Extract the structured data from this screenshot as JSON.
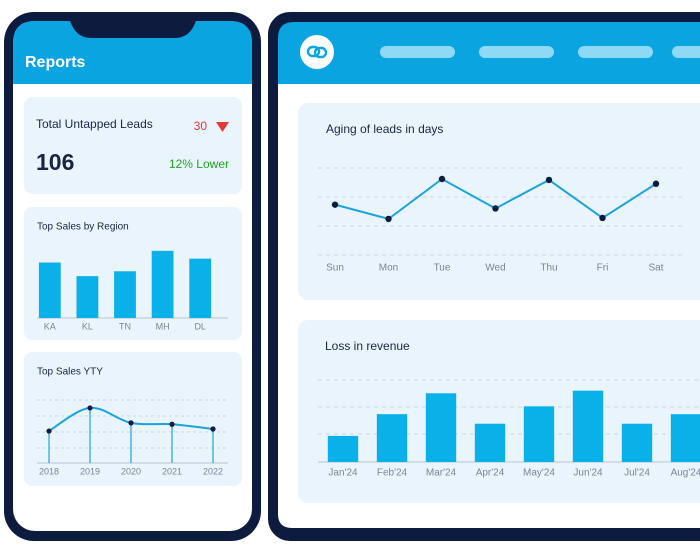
{
  "phone": {
    "title": "Reports",
    "leads": {
      "label": "Total Untapped Leads",
      "change": "30",
      "value": 106,
      "note": "12% Lower"
    },
    "charts": [
      {
        "type": "bar",
        "title": "Top Sales by Region",
        "categories": [
          "KA",
          "KL",
          "TN",
          "MH",
          "DL"
        ],
        "values": [
          57,
          43,
          48,
          69,
          61
        ],
        "ylim": [
          0,
          75
        ],
        "color": "#0ab0e8"
      },
      {
        "type": "line",
        "title": "Top Sales YTY",
        "x": [
          2018,
          2019,
          2020,
          2021,
          2022
        ],
        "values": [
          47,
          81,
          59,
          57,
          50
        ],
        "xlim": [
          2018,
          2022
        ],
        "ylim": [
          0,
          100
        ],
        "color": "#1aa3dc"
      }
    ]
  },
  "desktop": {
    "charts": [
      {
        "type": "line",
        "title": "Aging of leads in days",
        "categories": [
          "Sun",
          "Mon",
          "Tue",
          "Wed",
          "Thu",
          "Fri",
          "Sat"
        ],
        "values": [
          53,
          38,
          80,
          49,
          79,
          39,
          75
        ],
        "ylim": [
          0,
          100
        ],
        "color": "#1aa3dc"
      },
      {
        "type": "bar",
        "title": "Loss in revenue",
        "categories": [
          "Jan'24",
          "Feb'24",
          "Mar'24",
          "Apr'24",
          "May'24",
          "Jun'24",
          "Jul'24",
          "Aug'24"
        ],
        "values": [
          30,
          55,
          79,
          44,
          64,
          82,
          44,
          55
        ],
        "ylim": [
          0,
          100
        ],
        "color": "#0ab0e8"
      }
    ]
  }
}
